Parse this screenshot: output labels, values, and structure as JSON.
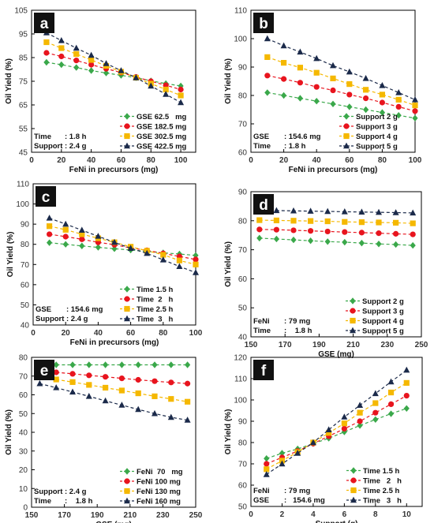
{
  "colors": {
    "green": "#3aa84a",
    "red": "#e8141e",
    "yellow": "#f5b800",
    "navy": "#1b2a4a",
    "axis": "#000000",
    "panel_label_bg": "#111111",
    "panel_label_text": "#ffffff"
  },
  "chart_data": [
    {
      "panel": "a",
      "type": "line",
      "xlabel": "FeNi in precursors (mg)",
      "ylabel": "Oil Yield (%)",
      "xlim": [
        0,
        110
      ],
      "ylim": [
        45,
        105
      ],
      "xticks": [
        0,
        20,
        40,
        60,
        80,
        100
      ],
      "yticks": [
        45,
        55,
        65,
        75,
        85,
        95,
        105
      ],
      "x": [
        10,
        20,
        30,
        40,
        50,
        60,
        70,
        80,
        90,
        100
      ],
      "series": [
        {
          "name": "GSE 62.5   mg",
          "color": "green",
          "marker": "diamond",
          "values": [
            83,
            82,
            80.8,
            79.5,
            78.5,
            77.5,
            76.5,
            75.2,
            74,
            73
          ]
        },
        {
          "name": "GSE 182.5 mg",
          "color": "red",
          "marker": "circle",
          "values": [
            87,
            85.5,
            83.8,
            82,
            80.3,
            78.7,
            76.8,
            75,
            73.3,
            71.5
          ]
        },
        {
          "name": "GSE 302.5 mg",
          "color": "yellow",
          "marker": "square",
          "values": [
            91.5,
            89,
            86.5,
            84,
            81.5,
            79,
            76.5,
            74,
            71.5,
            69
          ]
        },
        {
          "name": "GSE 422.5 mg",
          "color": "navy",
          "marker": "triangle",
          "values": [
            95.5,
            92.2,
            89,
            86,
            82.5,
            79.5,
            76.5,
            73,
            69.5,
            66
          ]
        }
      ],
      "legend": "bottom-right",
      "annotations": [
        {
          "label": "Time",
          "value": ": 1.8 h"
        },
        {
          "label": "Support",
          "value": ": 2.4 g"
        }
      ]
    },
    {
      "panel": "b",
      "type": "line",
      "xlabel": "FeNi in precursors (mg)",
      "ylabel": "Oil Yield (%)",
      "xlim": [
        0,
        100
      ],
      "ylim": [
        60,
        110
      ],
      "xticks": [
        0,
        20,
        40,
        60,
        80,
        100
      ],
      "yticks": [
        60,
        70,
        80,
        90,
        100,
        110
      ],
      "x": [
        10,
        20,
        30,
        40,
        50,
        60,
        70,
        80,
        90,
        100
      ],
      "series": [
        {
          "name": "Support 2 g",
          "color": "green",
          "marker": "diamond",
          "values": [
            81,
            80,
            79,
            78,
            77,
            76,
            75,
            74,
            73,
            72
          ]
        },
        {
          "name": "Support 3 g",
          "color": "red",
          "marker": "circle",
          "values": [
            87,
            85.8,
            84.5,
            83,
            81.8,
            80.3,
            79,
            77.5,
            76,
            74.5
          ]
        },
        {
          "name": "Support 4 g",
          "color": "yellow",
          "marker": "square",
          "values": [
            93.5,
            91.5,
            89.8,
            88,
            86,
            84,
            82,
            80.3,
            78.5,
            76.5
          ]
        },
        {
          "name": "Support 5 g",
          "color": "navy",
          "marker": "triangle",
          "values": [
            100,
            97.5,
            95.3,
            93,
            90.5,
            88.3,
            86,
            83.5,
            81,
            78.5
          ]
        }
      ],
      "legend": "bottom-right",
      "annotations": [
        {
          "label": "GSE",
          "value": ": 154.6 mg"
        },
        {
          "label": "Time",
          "value": ": 1.8 h"
        }
      ]
    },
    {
      "panel": "c",
      "type": "line",
      "xlabel": "FeNi in precursors (mg)",
      "ylabel": "Oil Yield (%)",
      "xlim": [
        0,
        100
      ],
      "ylim": [
        40,
        110
      ],
      "xticks": [
        0,
        20,
        40,
        60,
        80,
        100
      ],
      "yticks": [
        40,
        50,
        60,
        70,
        80,
        90,
        100,
        110
      ],
      "x": [
        10,
        20,
        30,
        40,
        50,
        60,
        70,
        80,
        90,
        100
      ],
      "series": [
        {
          "name": "Time 1.5 h",
          "color": "green",
          "marker": "diamond",
          "values": [
            80.8,
            80,
            79.2,
            78.5,
            77.8,
            77.2,
            76.5,
            75.8,
            75.2,
            74.5
          ]
        },
        {
          "name": "Time  2   h",
          "color": "red",
          "marker": "circle",
          "values": [
            85,
            83.8,
            82.5,
            81,
            79.8,
            78.2,
            77,
            75.5,
            74,
            72.5
          ]
        },
        {
          "name": "Time 2.5 h",
          "color": "yellow",
          "marker": "square",
          "values": [
            89,
            87.2,
            85,
            83,
            81,
            78.8,
            76.8,
            74.8,
            72,
            70
          ]
        },
        {
          "name": "Time  3   h",
          "color": "navy",
          "marker": "triangle",
          "values": [
            93,
            90,
            87,
            84,
            81,
            78,
            75.5,
            72.3,
            69,
            66
          ]
        }
      ],
      "legend": "bottom-right",
      "annotations": [
        {
          "label": "GSE",
          "value": ": 154.6 mg"
        },
        {
          "label": "Support",
          "value": ": 2.4 g"
        }
      ]
    },
    {
      "panel": "d",
      "type": "line",
      "xlabel": "GSE (mg)",
      "ylabel": "Oil Yield (%)",
      "xlim": [
        150,
        250
      ],
      "ylim": [
        40,
        90
      ],
      "xticks": [
        150,
        170,
        190,
        210,
        230,
        250
      ],
      "yticks": [
        40,
        50,
        60,
        70,
        80,
        90
      ],
      "x": [
        155,
        165,
        175,
        185,
        195,
        205,
        215,
        225,
        235,
        245
      ],
      "series": [
        {
          "name": "Support 2 g",
          "color": "green",
          "marker": "diamond",
          "values": [
            74,
            73.7,
            73.4,
            73.1,
            72.8,
            72.6,
            72.3,
            72,
            71.8,
            71.5
          ]
        },
        {
          "name": "Support 3 g",
          "color": "red",
          "marker": "circle",
          "values": [
            77,
            76.9,
            76.7,
            76.5,
            76.3,
            76.1,
            75.9,
            75.7,
            75.5,
            75.3
          ]
        },
        {
          "name": "Support 4 g",
          "color": "yellow",
          "marker": "square",
          "values": [
            80.2,
            80.1,
            80,
            79.9,
            79.8,
            79.6,
            79.5,
            79.4,
            79.3,
            79.1
          ]
        },
        {
          "name": "Support 5 g",
          "color": "navy",
          "marker": "triangle",
          "values": [
            83.5,
            83.5,
            83.4,
            83.3,
            83.2,
            83.1,
            83,
            82.9,
            82.8,
            82.7
          ]
        }
      ],
      "legend": "bottom-right",
      "annotations": [
        {
          "label": "FeNi",
          "value": ": 79 mg"
        },
        {
          "label": "Time",
          "value": ":    1.8 h"
        }
      ]
    },
    {
      "panel": "e",
      "type": "line",
      "xlabel": "GSE (mg)",
      "ylabel": "Oil Yield (%)",
      "xlim": [
        150,
        250
      ],
      "ylim": [
        0,
        80
      ],
      "xticks": [
        150,
        170,
        190,
        210,
        230,
        250
      ],
      "yticks": [
        0,
        10,
        20,
        30,
        40,
        50,
        60,
        70,
        80
      ],
      "x": [
        155,
        165,
        175,
        185,
        195,
        205,
        215,
        225,
        235,
        245
      ],
      "series": [
        {
          "name": "FeNi  70   mg",
          "color": "green",
          "marker": "diamond",
          "values": [
            76,
            76,
            76,
            76,
            76,
            76,
            76,
            76,
            76,
            76
          ]
        },
        {
          "name": "FeNi 100 mg",
          "color": "red",
          "marker": "circle",
          "values": [
            72.8,
            72,
            71.2,
            70.4,
            69.6,
            68.8,
            68,
            67.3,
            66.6,
            66
          ]
        },
        {
          "name": "FeNi 130 mg",
          "color": "yellow",
          "marker": "square",
          "values": [
            69.5,
            68.2,
            66.8,
            65.3,
            63.8,
            62.3,
            60.8,
            59.2,
            57.8,
            56.3
          ]
        },
        {
          "name": "FeNi 160 mg",
          "color": "navy",
          "marker": "triangle",
          "values": [
            66,
            63.8,
            61.5,
            59.2,
            56.8,
            54.5,
            52.2,
            50,
            48,
            46.5
          ]
        }
      ],
      "legend": "bottom-right",
      "annotations": [
        {
          "label": "Support",
          "value": ": 2.4 g"
        },
        {
          "label": "Time",
          "value": ":    1.8 h"
        }
      ]
    },
    {
      "panel": "f",
      "type": "line",
      "xlabel": "Support (g)",
      "ylabel": "Oil Yield (%)",
      "xlim": [
        0,
        11
      ],
      "ylim": [
        50,
        120
      ],
      "xticks": [
        0,
        2,
        4,
        6,
        8,
        10
      ],
      "yticks": [
        50,
        60,
        70,
        80,
        90,
        100,
        110,
        120
      ],
      "x": [
        1,
        2,
        3,
        4,
        5,
        6,
        7,
        8,
        9,
        10
      ],
      "series": [
        {
          "name": "Time 1.5 h",
          "color": "green",
          "marker": "diamond",
          "values": [
            72.5,
            75,
            77,
            79.5,
            82,
            85,
            88,
            90.8,
            93.5,
            96
          ]
        },
        {
          "name": "Time   2   h",
          "color": "red",
          "marker": "circle",
          "values": [
            70,
            73,
            76,
            79.5,
            83,
            86.5,
            90,
            94,
            98,
            102
          ]
        },
        {
          "name": "Time 2.5 h",
          "color": "yellow",
          "marker": "square",
          "values": [
            67.5,
            71.5,
            75.5,
            80,
            84.5,
            89,
            94,
            98.5,
            103.5,
            108
          ]
        },
        {
          "name": "Time   3   h",
          "color": "navy",
          "marker": "triangle",
          "values": [
            65,
            70,
            75,
            80,
            86,
            92,
            97.5,
            103,
            108.5,
            114
          ]
        }
      ],
      "legend": "bottom-right",
      "annotations": [
        {
          "label": "FeNi",
          "value": ": 79 mg"
        },
        {
          "label": "GSE",
          "value": ":   154.6 mg"
        }
      ]
    }
  ]
}
